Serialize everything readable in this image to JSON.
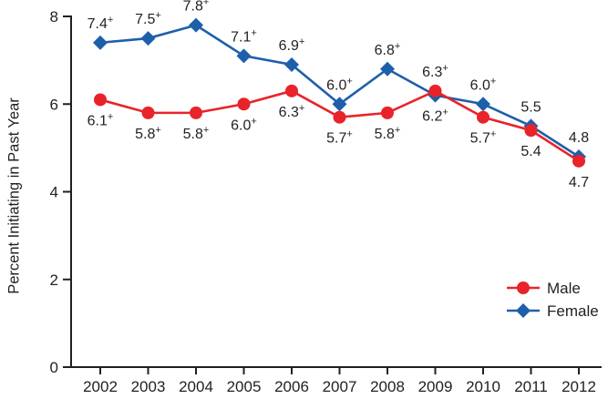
{
  "chart_data": {
    "type": "line",
    "title": "",
    "xlabel": "",
    "ylabel": "Percent Initiating in Past Year",
    "x": [
      "2002",
      "2003",
      "2004",
      "2005",
      "2006",
      "2007",
      "2008",
      "2009",
      "2010",
      "2011",
      "2012"
    ],
    "ylim": [
      0,
      8
    ],
    "yticks": [
      0,
      2,
      4,
      6,
      8
    ],
    "grid": false,
    "legend_position": "bottom-right",
    "legend_order": [
      "Male",
      "Female"
    ],
    "text_color": "#231F20",
    "series": [
      {
        "name": "Female",
        "color": "#1E5FAA",
        "marker": "diamond",
        "values": [
          7.4,
          7.5,
          7.8,
          7.1,
          6.9,
          6.0,
          6.8,
          6.2,
          6.0,
          5.5,
          4.8
        ],
        "point_labels": [
          "7.4+",
          "7.5+",
          "7.8+",
          "7.1+",
          "6.9+",
          "6.0+",
          "6.8+",
          "6.2+",
          "6.0+",
          "5.5",
          "4.8"
        ],
        "label_positions": [
          "above",
          "above",
          "above",
          "above",
          "above",
          "above",
          "above",
          "below",
          "above",
          "above",
          "above"
        ]
      },
      {
        "name": "Male",
        "color": "#E8232A",
        "marker": "circle",
        "values": [
          6.1,
          5.8,
          5.8,
          6.0,
          6.3,
          5.7,
          5.8,
          6.3,
          5.7,
          5.4,
          4.7
        ],
        "point_labels": [
          "6.1+",
          "5.8+",
          "5.8+",
          "6.0+",
          "6.3+",
          "5.7+",
          "5.8+",
          "6.3+",
          "5.7+",
          "5.4",
          "4.7"
        ],
        "label_positions": [
          "below",
          "below",
          "below",
          "below",
          "below",
          "below",
          "below",
          "above",
          "below",
          "below",
          "below"
        ]
      }
    ]
  }
}
